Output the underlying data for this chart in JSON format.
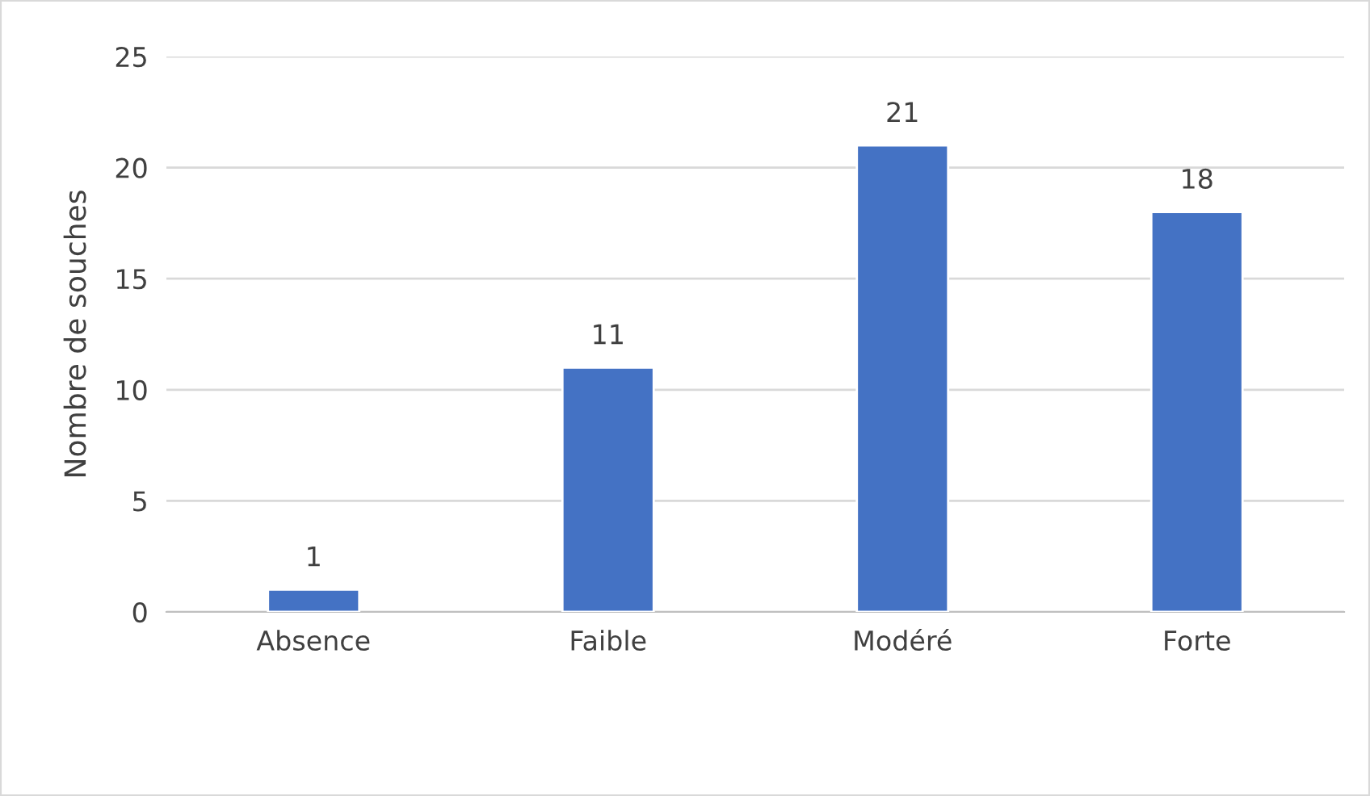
{
  "chart_data": {
    "type": "bar",
    "ylabel": "Nombre de souches",
    "categories": [
      "Absence",
      "Faible",
      "Modéré",
      "Forte"
    ],
    "values": [
      1,
      11,
      21,
      18
    ],
    "color": "#4472c4",
    "ylim": [
      0,
      25
    ],
    "yticks": [
      0,
      5,
      10,
      15,
      20,
      25
    ],
    "grid": "y",
    "data_labels": true
  }
}
